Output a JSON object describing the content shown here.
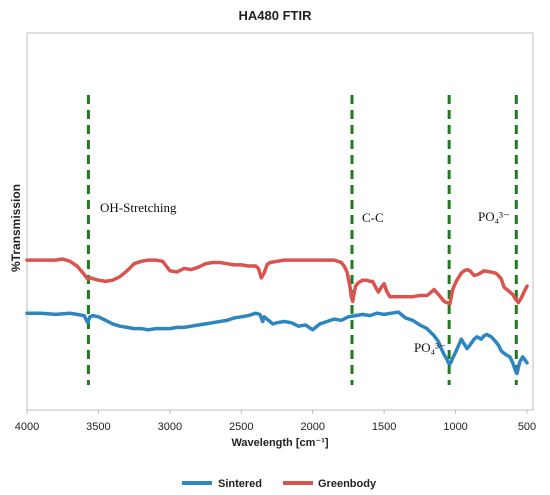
{
  "chart_data": {
    "type": "line",
    "title": "HA480 FTIR",
    "xlabel": "Wavelength [cm⁻¹]",
    "ylabel": "%Transmission",
    "xlim": [
      4000,
      500
    ],
    "x_reversed": true,
    "x_ticks": [
      "4000",
      "3500",
      "3000",
      "2500",
      "2000",
      "1500",
      "1000",
      "500"
    ],
    "y_ticks": [],
    "grid": false,
    "legend_position": "bottom",
    "series": [
      {
        "name": "Sintered",
        "color": "#2e86c1",
        "x": [
          4000,
          3900,
          3800,
          3700,
          3650,
          3600,
          3575,
          3560,
          3540,
          3500,
          3450,
          3400,
          3350,
          3300,
          3250,
          3200,
          3150,
          3100,
          3050,
          3000,
          2950,
          2900,
          2850,
          2800,
          2750,
          2700,
          2650,
          2600,
          2550,
          2500,
          2450,
          2400,
          2370,
          2350,
          2340,
          2320,
          2300,
          2280,
          2250,
          2200,
          2150,
          2100,
          2050,
          2000,
          1980,
          1950,
          1900,
          1850,
          1800,
          1750,
          1700,
          1650,
          1600,
          1550,
          1500,
          1450,
          1400,
          1350,
          1300,
          1250,
          1200,
          1150,
          1120,
          1100,
          1080,
          1060,
          1050,
          1040,
          1030,
          1020,
          1000,
          960,
          940,
          920,
          900,
          870,
          850,
          820,
          800,
          780,
          750,
          720,
          700,
          680,
          650,
          620,
          600,
          580,
          570,
          560,
          550,
          530,
          500
        ],
        "y": [
          82,
          82,
          81,
          82,
          81,
          80,
          74,
          79,
          80,
          79,
          76,
          73,
          71,
          70,
          69,
          69,
          68,
          69,
          69,
          69,
          70,
          70,
          71,
          72,
          73,
          74,
          75,
          76,
          78,
          79,
          80,
          82,
          81,
          75,
          79,
          77,
          75,
          73,
          74,
          75,
          74,
          71,
          72,
          68,
          70,
          73,
          75,
          77,
          76,
          79,
          80,
          81,
          80,
          82,
          81,
          82,
          83,
          78,
          76,
          72,
          69,
          63,
          58,
          52,
          47,
          43,
          40,
          39,
          41,
          44,
          49,
          60,
          56,
          52,
          55,
          60,
          62,
          60,
          63,
          64,
          62,
          58,
          55,
          50,
          47,
          45,
          40,
          33,
          31,
          36,
          41,
          45,
          40
        ]
      },
      {
        "name": "Greenbody",
        "color": "#d9534f",
        "x": [
          4000,
          3900,
          3800,
          3750,
          3700,
          3650,
          3600,
          3575,
          3560,
          3500,
          3450,
          3400,
          3350,
          3300,
          3250,
          3200,
          3150,
          3100,
          3050,
          3000,
          2950,
          2900,
          2850,
          2800,
          2750,
          2700,
          2650,
          2600,
          2550,
          2500,
          2450,
          2400,
          2380,
          2360,
          2340,
          2320,
          2300,
          2250,
          2200,
          2150,
          2100,
          2050,
          2000,
          1950,
          1900,
          1850,
          1800,
          1780,
          1760,
          1740,
          1730,
          1720,
          1710,
          1700,
          1680,
          1650,
          1620,
          1600,
          1580,
          1560,
          1540,
          1520,
          1500,
          1480,
          1460,
          1440,
          1420,
          1400,
          1380,
          1350,
          1300,
          1250,
          1200,
          1180,
          1150,
          1120,
          1100,
          1080,
          1060,
          1040,
          1030,
          1020,
          1000,
          980,
          960,
          940,
          920,
          900,
          870,
          840,
          800,
          760,
          720,
          700,
          680,
          660,
          640,
          620,
          600,
          580,
          560,
          540,
          520,
          500
        ],
        "y": [
          127,
          127,
          127,
          128,
          126,
          122,
          115,
          111,
          112,
          110,
          109,
          110,
          113,
          118,
          124,
          126,
          127,
          127,
          126,
          118,
          117,
          120,
          119,
          121,
          124,
          125,
          125,
          124,
          123,
          123,
          122,
          122,
          120,
          112,
          116,
          123,
          125,
          126,
          127,
          127,
          127,
          127,
          127,
          127,
          127,
          127,
          125,
          122,
          117,
          105,
          96,
          92,
          99,
          105,
          108,
          110,
          110,
          109,
          109,
          104,
          100,
          104,
          107,
          100,
          96,
          96,
          96,
          96,
          96,
          96,
          96,
          97,
          97,
          99,
          102,
          98,
          95,
          92,
          91,
          90,
          96,
          102,
          108,
          112,
          116,
          118,
          119,
          118,
          114,
          115,
          118,
          117,
          116,
          114,
          111,
          104,
          102,
          100,
          98,
          94,
          91,
          95,
          100,
          105
        ]
      }
    ],
    "annotations": [
      {
        "text": "OH-Stretching"
      },
      {
        "text": "C-C"
      },
      {
        "text": "PO₄³⁻"
      },
      {
        "text": "PO₄³⁻"
      }
    ],
    "reference_lines": [
      {
        "x": 3570,
        "color": "#1e7b1e",
        "style": "dashed"
      },
      {
        "x": 1725,
        "color": "#1e7b1e",
        "style": "dashed"
      },
      {
        "x": 1045,
        "color": "#1e7b1e",
        "style": "dashed"
      },
      {
        "x": 575,
        "color": "#1e7b1e",
        "style": "dashed"
      }
    ]
  }
}
